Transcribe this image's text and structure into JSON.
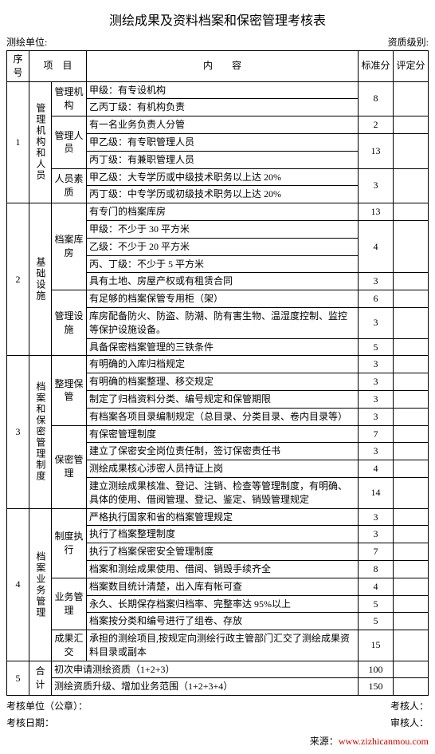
{
  "title": "测绘成果及资料档案和保密管理考核表",
  "header": {
    "left_label": "测绘单位:",
    "right_label": "资质级别:"
  },
  "columns": {
    "seq": "序号",
    "item": "项　目",
    "content": "内　　容",
    "std": "标准分",
    "eval": "评定分"
  },
  "sections": [
    {
      "seq": "1",
      "cat": "管理机构和人员",
      "groups": [
        {
          "sub": "管理机构",
          "rows": [
            {
              "text": "甲级：有专设机构",
              "std": "8",
              "span": 2
            },
            {
              "text": "乙丙丁级：有机构负责"
            }
          ]
        },
        {
          "sub": "管理人员",
          "rows": [
            {
              "text": "有一名业务负责人分管",
              "std": "2"
            },
            {
              "text": "甲乙级：有专职管理人员",
              "std": "13",
              "span": 2
            },
            {
              "text": "丙丁级：有兼职管理人员"
            }
          ]
        },
        {
          "sub": "人员素质",
          "rows": [
            {
              "text": "甲乙级：大专学历或中级技术职务以上达 20%",
              "std": "3",
              "span": 2
            },
            {
              "text": "丙丁级：中专学历或初级技术职务以上达 20%"
            }
          ]
        }
      ]
    },
    {
      "seq": "2",
      "cat": "基础设施",
      "groups": [
        {
          "sub": "档案库房",
          "rows": [
            {
              "text": "有专门的档案库房",
              "std": "13"
            },
            {
              "text": "甲级：不少于 30 平方米",
              "std": "4",
              "span": 3
            },
            {
              "text": "乙级：不少于 20 平方米"
            },
            {
              "text": "丙、丁级：不少于 5 平方米"
            },
            {
              "text": "具有土地、房屋产权或有租赁合同",
              "std": "3"
            }
          ]
        },
        {
          "sub": "管理设施",
          "rows": [
            {
              "text": "有足够的档案保管专用柜（架）",
              "std": "6"
            },
            {
              "text": "库房配备防火、防盗、防潮、防有害生物、温湿度控制、监控等保护设施设备。",
              "std": "3"
            },
            {
              "text": "具备保密档案管理的三铁条件",
              "std": "5"
            }
          ]
        }
      ]
    },
    {
      "seq": "3",
      "cat": "档案和保密管理制度",
      "groups": [
        {
          "sub": "整理保管",
          "rows": [
            {
              "text": "有明确的入库归档规定",
              "std": "3"
            },
            {
              "text": "有明确的档案整理、移交规定",
              "std": "3"
            },
            {
              "text": "制定了归档资料分类、编号规定和保管期限",
              "std": "3"
            },
            {
              "text": "有档案各项目录编制规定（总目录、分类目录、卷内目录等）",
              "std": "3"
            }
          ]
        },
        {
          "sub": "保密管理",
          "rows": [
            {
              "text": "有保密管理制度",
              "std": "7"
            },
            {
              "text": "建立了保密安全岗位责任制，签订保密责任书",
              "std": "3"
            },
            {
              "text": "测绘成果核心涉密人员持证上岗",
              "std": "4"
            },
            {
              "text": "建立测绘成果核准、登记、注销、检查等管理制度，有明确、具体的使用、借阅管理、登记、鉴定、销毁管理规定",
              "std": "14"
            }
          ]
        }
      ]
    },
    {
      "seq": "4",
      "cat": "档案业务管理",
      "groups": [
        {
          "sub": "制度执行",
          "rows": [
            {
              "text": "严格执行国家和省的档案管理规定",
              "std": "3"
            },
            {
              "text": "执行了档案整理制度",
              "std": "3"
            },
            {
              "text": "执行了档案保密安全管理制度",
              "std": "7"
            },
            {
              "text": "档案和测绘成果使用、借阅、销毁手续齐全",
              "std": "8"
            }
          ]
        },
        {
          "sub": "业务管理",
          "rows": [
            {
              "text": "档案数目统计清楚，出入库有帐可查",
              "std": "4"
            },
            {
              "text": "永久、长期保存档案归档率、完整率达 95%以上",
              "std": "5"
            },
            {
              "text": "档案按分类和编号进行了组卷、存放",
              "std": "5"
            }
          ]
        },
        {
          "sub": "成果汇交",
          "rows": [
            {
              "text": "承担的测绘项目,按规定向测绘行政主管部门汇交了测绘成果资料目录或副本",
              "std": "15"
            }
          ]
        }
      ]
    }
  ],
  "totals": {
    "seq": "5",
    "label": "合计",
    "rows": [
      {
        "text": "初次申请测绘资质（1+2+3）",
        "std": "100"
      },
      {
        "text": "测绘资质升级、增加业务范围（1+2+3+4）",
        "std": "150"
      }
    ]
  },
  "footer": {
    "left1": "考核单位（公章）：",
    "right1": "考核人：",
    "left2": "考核日期：",
    "right2": "审核人："
  },
  "source": {
    "label": "来源：",
    "url": "www.zizhicanmou.com"
  }
}
